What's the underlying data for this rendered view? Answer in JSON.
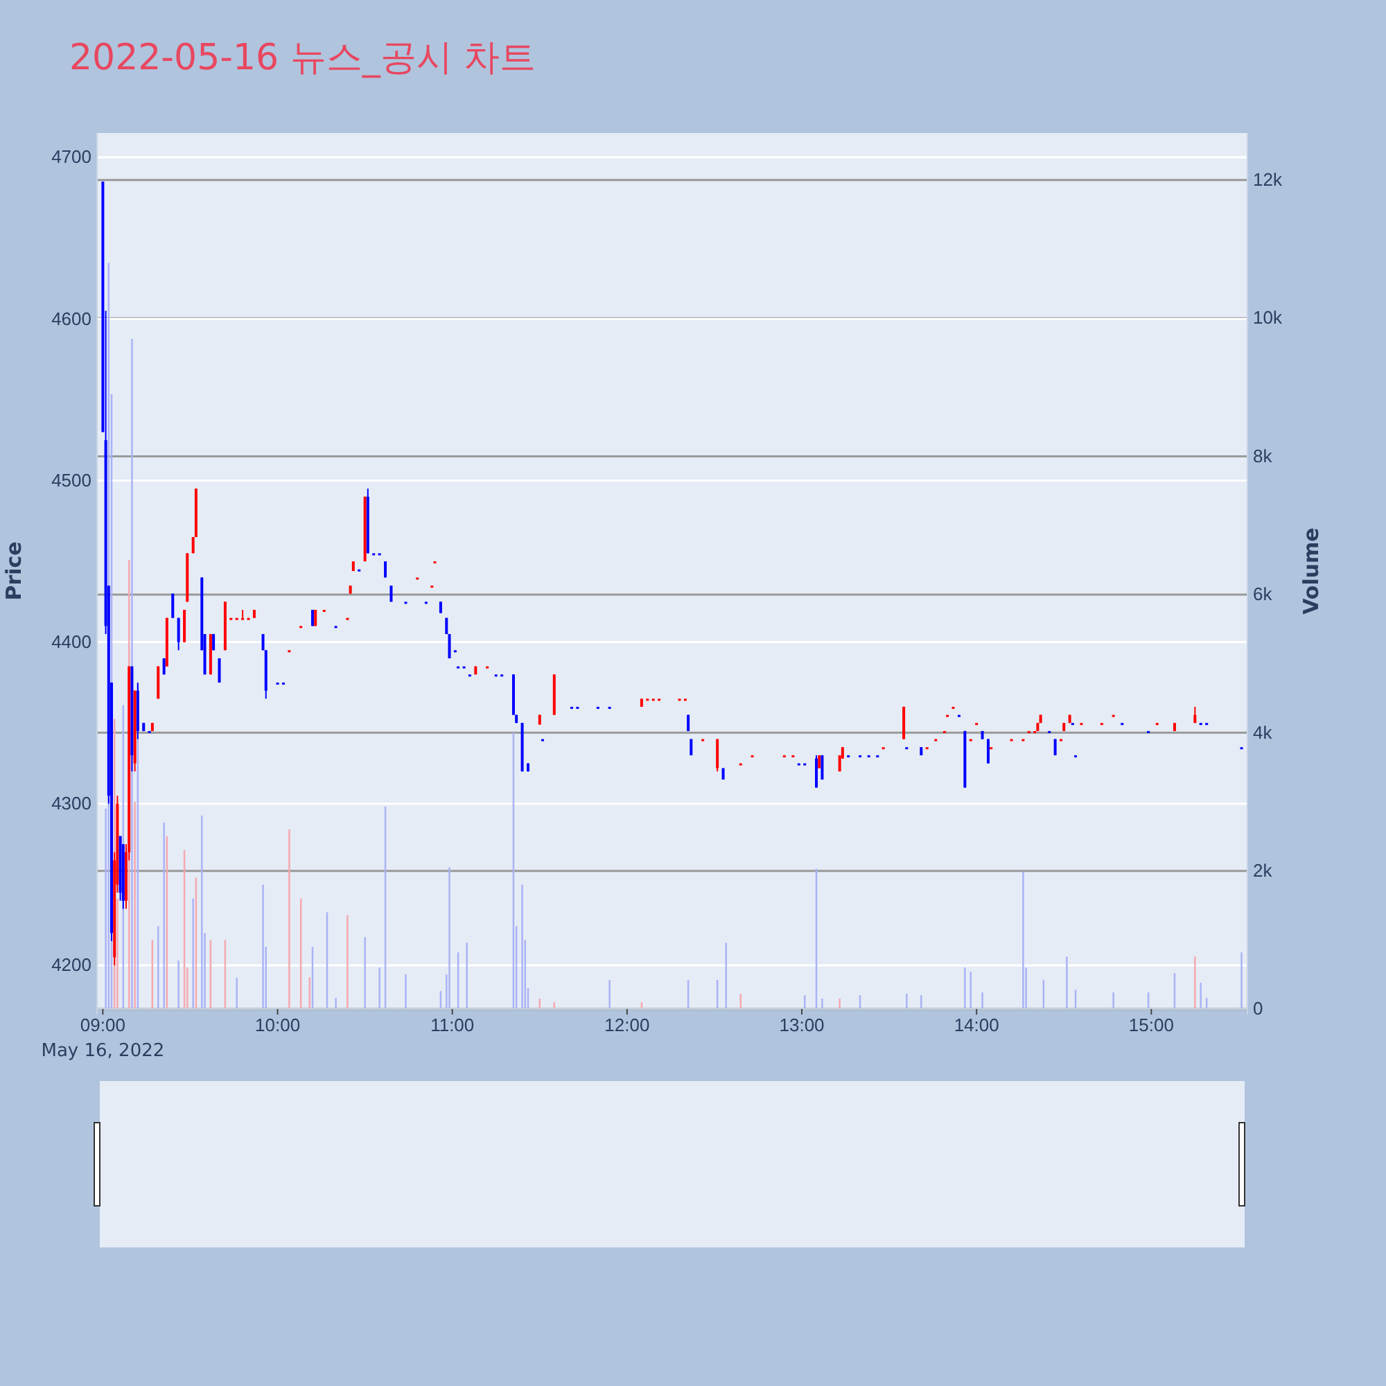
{
  "chart_data": {
    "type": "candlestick",
    "title": "2022-05-16 뉴스_공시 차트",
    "ylabel": "Price",
    "y2label": "Volume",
    "annotations": [
      "May 16, 2022"
    ],
    "xlim": [
      "2022-05-16T08:58",
      "2022-05-16T15:33"
    ],
    "xticks": [
      {
        "value": "2022-05-16T09:00",
        "label": "09:00"
      },
      {
        "value": "2022-05-16T10:00",
        "label": "10:00"
      },
      {
        "value": "2022-05-16T11:00",
        "label": "11:00"
      },
      {
        "value": "2022-05-16T12:00",
        "label": "12:00"
      },
      {
        "value": "2022-05-16T13:00",
        "label": "13:00"
      },
      {
        "value": "2022-05-16T14:00",
        "label": "14:00"
      },
      {
        "value": "2022-05-16T15:00",
        "label": "15:00"
      }
    ],
    "ylim": [
      4173,
      4715
    ],
    "yticks": [
      4200,
      4300,
      4400,
      4500,
      4600,
      4700
    ],
    "y2lim": [
      0,
      12680
    ],
    "y2ticks": [
      0,
      {
        "value": 2000,
        "label": "2k"
      },
      {
        "value": 4000,
        "label": "4k"
      },
      {
        "value": 6000,
        "label": "6k"
      },
      {
        "value": 8000,
        "label": "8k"
      },
      {
        "value": 10000,
        "label": "10k"
      },
      {
        "value": 12000,
        "label": "12k"
      }
    ],
    "grid": "y",
    "series": [
      {
        "type": "bar",
        "axis": "y2",
        "x": [
          "2022-05-16T09:01",
          "2022-05-16T09:02",
          "2022-05-16T09:03",
          "2022-05-16T09:04",
          "2022-05-16T09:05",
          "2022-05-16T09:07",
          "2022-05-16T09:09",
          "2022-05-16T09:10",
          "2022-05-16T09:11",
          "2022-05-16T09:12",
          "2022-05-16T09:17",
          "2022-05-16T09:19",
          "2022-05-16T09:21",
          "2022-05-16T09:22",
          "2022-05-16T09:26",
          "2022-05-16T09:28",
          "2022-05-16T09:29",
          "2022-05-16T09:31",
          "2022-05-16T09:32",
          "2022-05-16T09:34",
          "2022-05-16T09:35",
          "2022-05-16T09:37",
          "2022-05-16T09:42",
          "2022-05-16T09:46",
          "2022-05-16T09:55",
          "2022-05-16T09:56",
          "2022-05-16T10:04",
          "2022-05-16T10:08",
          "2022-05-16T10:11",
          "2022-05-16T10:12",
          "2022-05-16T10:17",
          "2022-05-16T10:20",
          "2022-05-16T10:24",
          "2022-05-16T10:30",
          "2022-05-16T10:35",
          "2022-05-16T10:37",
          "2022-05-16T10:44",
          "2022-05-16T10:56",
          "2022-05-16T10:58",
          "2022-05-16T10:59",
          "2022-05-16T11:02",
          "2022-05-16T11:05",
          "2022-05-16T11:21",
          "2022-05-16T11:22",
          "2022-05-16T11:24",
          "2022-05-16T11:25",
          "2022-05-16T11:26",
          "2022-05-16T11:30",
          "2022-05-16T11:35",
          "2022-05-16T11:54",
          "2022-05-16T12:05",
          "2022-05-16T12:21",
          "2022-05-16T12:31",
          "2022-05-16T12:34",
          "2022-05-16T12:39",
          "2022-05-16T13:01",
          "2022-05-16T13:05",
          "2022-05-16T13:07",
          "2022-05-16T13:13",
          "2022-05-16T13:20",
          "2022-05-16T13:36",
          "2022-05-16T13:41",
          "2022-05-16T13:56",
          "2022-05-16T13:58",
          "2022-05-16T14:02",
          "2022-05-16T14:16",
          "2022-05-16T14:17",
          "2022-05-16T14:23",
          "2022-05-16T14:31",
          "2022-05-16T14:34",
          "2022-05-16T14:47",
          "2022-05-16T14:59",
          "2022-05-16T15:08",
          "2022-05-16T15:15",
          "2022-05-16T15:17",
          "2022-05-16T15:19",
          "2022-05-16T15:31"
        ],
        "values": [
          2900,
          10800,
          8900,
          4200,
          1600,
          4400,
          6500,
          9700,
          3000,
          4700,
          1000,
          1200,
          2700,
          2500,
          700,
          2300,
          600,
          1600,
          1900,
          2800,
          1100,
          1000,
          1000,
          450,
          1800,
          900,
          2600,
          1600,
          460,
          900,
          1400,
          160,
          1360,
          1040,
          600,
          2930,
          500,
          260,
          500,
          2050,
          820,
          960,
          4000,
          1200,
          1800,
          1000,
          300,
          150,
          100,
          420,
          100,
          420,
          420,
          960,
          220,
          200,
          2030,
          150,
          150,
          200,
          220,
          200,
          600,
          540,
          240,
          1990,
          600,
          420,
          760,
          280,
          240,
          240,
          520,
          760,
          380,
          160,
          820
        ],
        "colors": [
          "#aab3f5",
          "#aab3f5",
          "#aab3f5",
          "#f5a9b0",
          "#f5a9b0",
          "#aab3f5",
          "#f5a9b0",
          "#aab3f5",
          "#f5a9b0",
          "#aab3f5",
          "#f5a9b0",
          "#aab3f5",
          "#aab3f5",
          "#f5a9b0",
          "#aab3f5",
          "#f5a9b0",
          "#f5a9b0",
          "#aab3f5",
          "#f5a9b0",
          "#aab3f5",
          "#aab3f5",
          "#f5a9b0",
          "#f5a9b0",
          "#aab3f5",
          "#aab3f5",
          "#aab3f5",
          "#f5a9b0",
          "#f5a9b0",
          "#f5a9b0",
          "#aab3f5",
          "#aab3f5",
          "#aab3f5",
          "#f5a9b0",
          "#aab3f5",
          "#aab3f5",
          "#aab3f5",
          "#aab3f5",
          "#aab3f5",
          "#aab3f5",
          "#aab3f5",
          "#aab3f5",
          "#aab3f5",
          "#aab3f5",
          "#aab3f5",
          "#aab3f5",
          "#aab3f5",
          "#aab3f5",
          "#f5a9b0",
          "#f5a9b0",
          "#aab3f5",
          "#f5a9b0",
          "#aab3f5",
          "#aab3f5",
          "#aab3f5",
          "#f5a9b0",
          "#aab3f5",
          "#aab3f5",
          "#aab3f5",
          "#f5a9b0",
          "#aab3f5",
          "#aab3f5",
          "#aab3f5",
          "#aab3f5",
          "#aab3f5",
          "#aab3f5",
          "#aab3f5",
          "#aab3f5",
          "#aab3f5",
          "#aab3f5",
          "#aab3f5",
          "#aab3f5",
          "#aab3f5",
          "#aab3f5",
          "#f5a9b0",
          "#aab3f5",
          "#aab3f5",
          "#aab3f5"
        ]
      },
      {
        "x": [
          "2022-05-16T09:00",
          "2022-05-16T09:01",
          "2022-05-16T09:02",
          "2022-05-16T09:03",
          "2022-05-16T09:04",
          "2022-05-16T09:05",
          "2022-05-16T09:06",
          "2022-05-16T09:07",
          "2022-05-16T09:08",
          "2022-05-16T09:09",
          "2022-05-16T09:10",
          "2022-05-16T09:11",
          "2022-05-16T09:12",
          "2022-05-16T09:14",
          "2022-05-16T09:16",
          "2022-05-16T09:17",
          "2022-05-16T09:19",
          "2022-05-16T09:21",
          "2022-05-16T09:22",
          "2022-05-16T09:24",
          "2022-05-16T09:26",
          "2022-05-16T09:28",
          "2022-05-16T09:29",
          "2022-05-16T09:31",
          "2022-05-16T09:32",
          "2022-05-16T09:34",
          "2022-05-16T09:35",
          "2022-05-16T09:37",
          "2022-05-16T09:38",
          "2022-05-16T09:40",
          "2022-05-16T09:42",
          "2022-05-16T09:44",
          "2022-05-16T09:46",
          "2022-05-16T09:48",
          "2022-05-16T09:50",
          "2022-05-16T09:52",
          "2022-05-16T09:55",
          "2022-05-16T09:56",
          "2022-05-16T10:00",
          "2022-05-16T10:02",
          "2022-05-16T10:04",
          "2022-05-16T10:08",
          "2022-05-16T10:12",
          "2022-05-16T10:13",
          "2022-05-16T10:16",
          "2022-05-16T10:20",
          "2022-05-16T10:24",
          "2022-05-16T10:25",
          "2022-05-16T10:26",
          "2022-05-16T10:28",
          "2022-05-16T10:30",
          "2022-05-16T10:31",
          "2022-05-16T10:33",
          "2022-05-16T10:35",
          "2022-05-16T10:37",
          "2022-05-16T10:39",
          "2022-05-16T10:44",
          "2022-05-16T10:48",
          "2022-05-16T10:51",
          "2022-05-16T10:53",
          "2022-05-16T10:54",
          "2022-05-16T10:56",
          "2022-05-16T10:58",
          "2022-05-16T10:59",
          "2022-05-16T11:01",
          "2022-05-16T11:02",
          "2022-05-16T11:04",
          "2022-05-16T11:06",
          "2022-05-16T11:08",
          "2022-05-16T11:12",
          "2022-05-16T11:15",
          "2022-05-16T11:17",
          "2022-05-16T11:21",
          "2022-05-16T11:22",
          "2022-05-16T11:24",
          "2022-05-16T11:26",
          "2022-05-16T11:30",
          "2022-05-16T11:31",
          "2022-05-16T11:35",
          "2022-05-16T11:41",
          "2022-05-16T11:43",
          "2022-05-16T11:50",
          "2022-05-16T11:54",
          "2022-05-16T12:05",
          "2022-05-16T12:07",
          "2022-05-16T12:09",
          "2022-05-16T12:11",
          "2022-05-16T12:18",
          "2022-05-16T12:20",
          "2022-05-16T12:21",
          "2022-05-16T12:22",
          "2022-05-16T12:26",
          "2022-05-16T12:31",
          "2022-05-16T12:33",
          "2022-05-16T12:39",
          "2022-05-16T12:43",
          "2022-05-16T12:54",
          "2022-05-16T12:57",
          "2022-05-16T12:59",
          "2022-05-16T13:01",
          "2022-05-16T13:05",
          "2022-05-16T13:06",
          "2022-05-16T13:07",
          "2022-05-16T13:13",
          "2022-05-16T13:14",
          "2022-05-16T13:16",
          "2022-05-16T13:20",
          "2022-05-16T13:23",
          "2022-05-16T13:26",
          "2022-05-16T13:28",
          "2022-05-16T13:35",
          "2022-05-16T13:36",
          "2022-05-16T13:41",
          "2022-05-16T13:43",
          "2022-05-16T13:46",
          "2022-05-16T13:49",
          "2022-05-16T13:50",
          "2022-05-16T13:52",
          "2022-05-16T13:54",
          "2022-05-16T13:56",
          "2022-05-16T13:58",
          "2022-05-16T14:00",
          "2022-05-16T14:02",
          "2022-05-16T14:04",
          "2022-05-16T14:05",
          "2022-05-16T14:12",
          "2022-05-16T14:16",
          "2022-05-16T14:18",
          "2022-05-16T14:20",
          "2022-05-16T14:21",
          "2022-05-16T14:22",
          "2022-05-16T14:25",
          "2022-05-16T14:27",
          "2022-05-16T14:29",
          "2022-05-16T14:30",
          "2022-05-16T14:32",
          "2022-05-16T14:33",
          "2022-05-16T14:34",
          "2022-05-16T14:36",
          "2022-05-16T14:43",
          "2022-05-16T14:47",
          "2022-05-16T14:50",
          "2022-05-16T14:59",
          "2022-05-16T15:02",
          "2022-05-16T15:08",
          "2022-05-16T15:15",
          "2022-05-16T15:17",
          "2022-05-16T15:19",
          "2022-05-16T15:31"
        ],
        "ohlc": [
          [
            4685,
            4685,
            4530,
            4530
          ],
          [
            4525,
            4605,
            4405,
            4410
          ],
          [
            4435,
            4435,
            4300,
            4305
          ],
          [
            4375,
            4375,
            4215,
            4220
          ],
          [
            4205,
            4270,
            4200,
            4265
          ],
          [
            4250,
            4305,
            4245,
            4300
          ],
          [
            4280,
            4280,
            4240,
            4245
          ],
          [
            4275,
            4275,
            4235,
            4240
          ],
          [
            4240,
            4275,
            4235,
            4270
          ],
          [
            4270,
            4385,
            4265,
            4385
          ],
          [
            4385,
            4385,
            4320,
            4330
          ],
          [
            4325,
            4370,
            4320,
            4370
          ],
          [
            4370,
            4375,
            4340,
            4345
          ],
          [
            4350,
            4350,
            4345,
            4345
          ],
          [
            4345,
            4345,
            4345,
            4345
          ],
          [
            4345,
            4350,
            4345,
            4350
          ],
          [
            4365,
            4385,
            4365,
            4385
          ],
          [
            4390,
            4390,
            4380,
            4380
          ],
          [
            4385,
            4415,
            4385,
            4415
          ],
          [
            4430,
            4430,
            4415,
            4415
          ],
          [
            4415,
            4415,
            4395,
            4400
          ],
          [
            4400,
            4420,
            4400,
            4420
          ],
          [
            4425,
            4455,
            4425,
            4455
          ],
          [
            4455,
            4465,
            4455,
            4465
          ],
          [
            4465,
            4495,
            4465,
            4495
          ],
          [
            4440,
            4440,
            4395,
            4395
          ],
          [
            4405,
            4405,
            4380,
            4380
          ],
          [
            4380,
            4405,
            4380,
            4405
          ],
          [
            4405,
            4405,
            4395,
            4395
          ],
          [
            4390,
            4390,
            4375,
            4375
          ],
          [
            4395,
            4425,
            4395,
            4425
          ],
          [
            4415,
            4415,
            4415,
            4415
          ],
          [
            4415,
            4415,
            4415,
            4415
          ],
          [
            4415,
            4420,
            4415,
            4415
          ],
          [
            4415,
            4415,
            4415,
            4415
          ],
          [
            4415,
            4420,
            4415,
            4420
          ],
          [
            4405,
            4405,
            4395,
            4395
          ],
          [
            4395,
            4395,
            4365,
            4370
          ],
          [
            4375,
            4375,
            4375,
            4375
          ],
          [
            4375,
            4375,
            4375,
            4375
          ],
          [
            4395,
            4395,
            4395,
            4395
          ],
          [
            4410,
            4410,
            4410,
            4410
          ],
          [
            4420,
            4420,
            4410,
            4410
          ],
          [
            4410,
            4420,
            4410,
            4420
          ],
          [
            4420,
            4420,
            4420,
            4420
          ],
          [
            4410,
            4410,
            4410,
            4410
          ],
          [
            4415,
            4415,
            4415,
            4415
          ],
          [
            4430,
            4435,
            4430,
            4435
          ],
          [
            4444,
            4450,
            4444,
            4450
          ],
          [
            4445,
            4445,
            4445,
            4445
          ],
          [
            4450,
            4490,
            4450,
            4490
          ],
          [
            4490,
            4495,
            4455,
            4455
          ],
          [
            4455,
            4455,
            4455,
            4455
          ],
          [
            4455,
            4455,
            4455,
            4455
          ],
          [
            4450,
            4450,
            4440,
            4440
          ],
          [
            4435,
            4435,
            4425,
            4425
          ],
          [
            4425,
            4425,
            4425,
            4425
          ],
          [
            4440,
            4440,
            4440,
            4440
          ],
          [
            4425,
            4425,
            4425,
            4425
          ],
          [
            4435,
            4435,
            4435,
            4435
          ],
          [
            4450,
            4450,
            4450,
            4450
          ],
          [
            4425,
            4425,
            4418,
            4418
          ],
          [
            4415,
            4415,
            4405,
            4405
          ],
          [
            4405,
            4405,
            4390,
            4390
          ],
          [
            4395,
            4395,
            4395,
            4395
          ],
          [
            4385,
            4385,
            4385,
            4385
          ],
          [
            4385,
            4385,
            4385,
            4385
          ],
          [
            4380,
            4380,
            4380,
            4380
          ],
          [
            4380,
            4385,
            4380,
            4385
          ],
          [
            4385,
            4385,
            4385,
            4385
          ],
          [
            4380,
            4380,
            4380,
            4380
          ],
          [
            4380,
            4380,
            4380,
            4380
          ],
          [
            4380,
            4380,
            4355,
            4355
          ],
          [
            4355,
            4355,
            4350,
            4350
          ],
          [
            4350,
            4350,
            4320,
            4320
          ],
          [
            4325,
            4325,
            4320,
            4320
          ],
          [
            4349,
            4355,
            4349,
            4355
          ],
          [
            4340,
            4340,
            4340,
            4340
          ],
          [
            4355,
            4380,
            4355,
            4380
          ],
          [
            4360,
            4360,
            4360,
            4360
          ],
          [
            4360,
            4360,
            4360,
            4360
          ],
          [
            4360,
            4360,
            4360,
            4360
          ],
          [
            4360,
            4360,
            4360,
            4360
          ],
          [
            4360,
            4365,
            4360,
            4365
          ],
          [
            4365,
            4365,
            4365,
            4365
          ],
          [
            4365,
            4365,
            4365,
            4365
          ],
          [
            4365,
            4365,
            4365,
            4365
          ],
          [
            4365,
            4365,
            4365,
            4365
          ],
          [
            4365,
            4365,
            4365,
            4365
          ],
          [
            4355,
            4355,
            4345,
            4345
          ],
          [
            4340,
            4340,
            4330,
            4330
          ],
          [
            4340,
            4340,
            4340,
            4340
          ],
          [
            4322,
            4340,
            4320,
            4340
          ],
          [
            4322,
            4322,
            4315,
            4315
          ],
          [
            4325,
            4325,
            4325,
            4325
          ],
          [
            4330,
            4330,
            4330,
            4330
          ],
          [
            4330,
            4330,
            4330,
            4330
          ],
          [
            4330,
            4330,
            4330,
            4330
          ],
          [
            4325,
            4325,
            4325,
            4325
          ],
          [
            4325,
            4325,
            4325,
            4325
          ],
          [
            4328,
            4330,
            4310,
            4310
          ],
          [
            4322,
            4330,
            4322,
            4330
          ],
          [
            4330,
            4330,
            4315,
            4315
          ],
          [
            4320,
            4330,
            4320,
            4330
          ],
          [
            4328,
            4335,
            4328,
            4335
          ],
          [
            4330,
            4330,
            4330,
            4330
          ],
          [
            4330,
            4330,
            4330,
            4330
          ],
          [
            4330,
            4330,
            4330,
            4330
          ],
          [
            4330,
            4330,
            4330,
            4330
          ],
          [
            4335,
            4335,
            4335,
            4335
          ],
          [
            4340,
            4360,
            4340,
            4360
          ],
          [
            4335,
            4335,
            4335,
            4335
          ],
          [
            4335,
            4335,
            4330,
            4330
          ],
          [
            4335,
            4335,
            4335,
            4335
          ],
          [
            4340,
            4340,
            4340,
            4340
          ],
          [
            4345,
            4345,
            4345,
            4345
          ],
          [
            4355,
            4355,
            4355,
            4355
          ],
          [
            4360,
            4360,
            4360,
            4360
          ],
          [
            4355,
            4355,
            4355,
            4355
          ],
          [
            4345,
            4345,
            4310,
            4310
          ],
          [
            4340,
            4340,
            4340,
            4340
          ],
          [
            4350,
            4350,
            4350,
            4350
          ],
          [
            4345,
            4345,
            4340,
            4340
          ],
          [
            4340,
            4340,
            4325,
            4325
          ],
          [
            4335,
            4335,
            4335,
            4335
          ],
          [
            4340,
            4340,
            4340,
            4340
          ],
          [
            4340,
            4340,
            4340,
            4340
          ],
          [
            4345,
            4345,
            4345,
            4345
          ],
          [
            4345,
            4345,
            4345,
            4345
          ],
          [
            4345,
            4350,
            4345,
            4350
          ],
          [
            4350,
            4355,
            4350,
            4355
          ],
          [
            4345,
            4345,
            4345,
            4345
          ],
          [
            4340,
            4340,
            4330,
            4330
          ],
          [
            4340,
            4340,
            4340,
            4340
          ],
          [
            4345,
            4350,
            4345,
            4350
          ],
          [
            4350,
            4355,
            4350,
            4355
          ],
          [
            4350,
            4350,
            4350,
            4350
          ],
          [
            4330,
            4330,
            4330,
            4330
          ],
          [
            4350,
            4350,
            4350,
            4350
          ],
          [
            4350,
            4350,
            4350,
            4350
          ],
          [
            4355,
            4355,
            4355,
            4355
          ],
          [
            4350,
            4350,
            4350,
            4350
          ],
          [
            4345,
            4345,
            4345,
            4345
          ],
          [
            4350,
            4350,
            4350,
            4350
          ],
          [
            4345,
            4350,
            4345,
            4350
          ],
          [
            4350,
            4360,
            4350,
            4355
          ],
          [
            4350,
            4350,
            4350,
            4350
          ],
          [
            4350,
            4350,
            4350,
            4350
          ],
          [
            4335,
            4335,
            4335,
            4335
          ]
        ],
        "colors": [
          "#0000ff",
          "#0000ff",
          "#0000ff",
          "#0000ff",
          "#ff0000",
          "#ff0000",
          "#0000ff",
          "#0000ff",
          "#ff0000",
          "#ff0000",
          "#0000ff",
          "#ff0000",
          "#0000ff",
          "#0000ff",
          "#0000ff",
          "#ff0000",
          "#ff0000",
          "#0000ff",
          "#ff0000",
          "#0000ff",
          "#0000ff",
          "#ff0000",
          "#ff0000",
          "#ff0000",
          "#ff0000",
          "#0000ff",
          "#0000ff",
          "#ff0000",
          "#0000ff",
          "#0000ff",
          "#ff0000",
          "#ff0000",
          "#ff0000",
          "#ff0000",
          "#ff0000",
          "#ff0000",
          "#0000ff",
          "#0000ff",
          "#0000ff",
          "#0000ff",
          "#ff0000",
          "#ff0000",
          "#0000ff",
          "#ff0000",
          "#ff0000",
          "#0000ff",
          "#ff0000",
          "#ff0000",
          "#ff0000",
          "#0000ff",
          "#ff0000",
          "#0000ff",
          "#0000ff",
          "#0000ff",
          "#0000ff",
          "#0000ff",
          "#0000ff",
          "#ff0000",
          "#0000ff",
          "#ff0000",
          "#ff0000",
          "#0000ff",
          "#0000ff",
          "#0000ff",
          "#0000ff",
          "#0000ff",
          "#0000ff",
          "#0000ff",
          "#ff0000",
          "#ff0000",
          "#0000ff",
          "#0000ff",
          "#0000ff",
          "#0000ff",
          "#0000ff",
          "#0000ff",
          "#ff0000",
          "#0000ff",
          "#ff0000",
          "#0000ff",
          "#0000ff",
          "#0000ff",
          "#0000ff",
          "#ff0000",
          "#ff0000",
          "#ff0000",
          "#ff0000",
          "#ff0000",
          "#ff0000",
          "#0000ff",
          "#0000ff",
          "#ff0000",
          "#ff0000",
          "#0000ff",
          "#ff0000",
          "#ff0000",
          "#ff0000",
          "#ff0000",
          "#0000ff",
          "#0000ff",
          "#0000ff",
          "#ff0000",
          "#0000ff",
          "#ff0000",
          "#ff0000",
          "#0000ff",
          "#0000ff",
          "#0000ff",
          "#0000ff",
          "#ff0000",
          "#ff0000",
          "#0000ff",
          "#0000ff",
          "#ff0000",
          "#ff0000",
          "#ff0000",
          "#ff0000",
          "#ff0000",
          "#0000ff",
          "#0000ff",
          "#ff0000",
          "#ff0000",
          "#0000ff",
          "#0000ff",
          "#ff0000",
          "#ff0000",
          "#ff0000",
          "#ff0000",
          "#ff0000",
          "#ff0000",
          "#ff0000",
          "#0000ff",
          "#0000ff",
          "#ff0000",
          "#ff0000",
          "#ff0000",
          "#0000ff",
          "#0000ff",
          "#ff0000",
          "#ff0000",
          "#ff0000",
          "#0000ff",
          "#0000ff",
          "#ff0000",
          "#ff0000",
          "#ff0000",
          "#0000ff",
          "#0000ff",
          "#0000ff"
        ]
      }
    ]
  }
}
